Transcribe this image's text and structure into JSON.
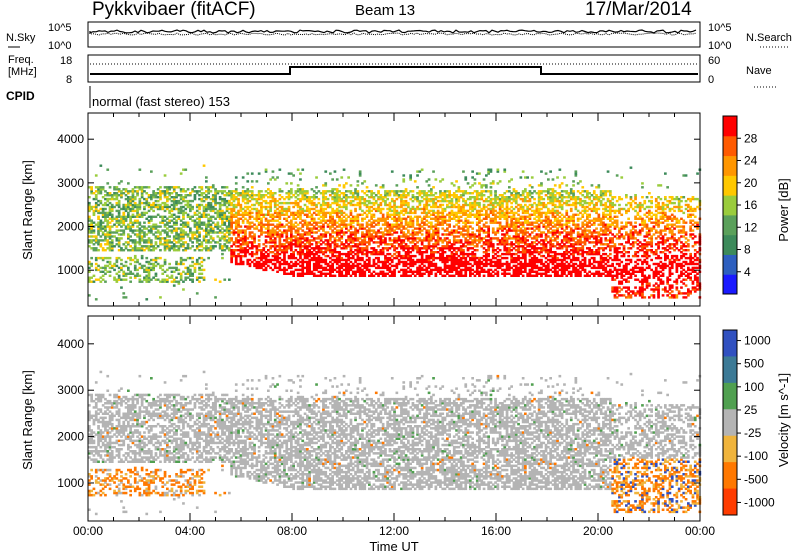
{
  "header": {
    "title": "Pykkvibaer (fitACF)",
    "beam": "Beam 13",
    "date": "17/Mar/2014"
  },
  "top_panel": {
    "left_label": "N.Sky",
    "right_label": "N.Search",
    "left_ticks": [
      "10^5",
      "10^0"
    ],
    "right_ticks": [
      "10^5",
      "10^0"
    ]
  },
  "freq_panel": {
    "left_label_1": "Freq.",
    "left_label_2": "[MHz]",
    "right_label": "Nave",
    "left_ticks": [
      "18",
      "8"
    ],
    "right_ticks": [
      "60",
      "0"
    ]
  },
  "cpid": {
    "label": "CPID",
    "value": "normal (fast stereo) 153"
  },
  "colors": {
    "power_scale": [
      "#1a1aff",
      "#2d5fbf",
      "#3c8a5a",
      "#5aa05a",
      "#9acc3c",
      "#ffc800",
      "#ff9600",
      "#ff5a00",
      "#ff0000"
    ],
    "velocity_scale": [
      "#3050c0",
      "#3c7a96",
      "#50a050",
      "#b4b4b4",
      "#f0b43c",
      "#ff7800",
      "#ff3c00"
    ],
    "ground_scatter": "#b4b4b4"
  },
  "chart_data": [
    {
      "type": "heatmap",
      "title": "",
      "xlabel": "Time UT",
      "ylabel": "Slant Range [km]",
      "colorbar_label": "Power [dB]",
      "x_ticks": [
        "00:00",
        "04:00",
        "08:00",
        "12:00",
        "16:00",
        "20:00",
        "00:00"
      ],
      "xlim": [
        0,
        24
      ],
      "y_ticks": [
        "1000",
        "2000",
        "3000",
        "4000"
      ],
      "ylim": [
        180,
        4600
      ],
      "colorbar_ticks": [
        "4",
        "8",
        "12",
        "16",
        "20",
        "24",
        "28"
      ],
      "colorbar_range": [
        0,
        32
      ],
      "description_bands": [
        {
          "t": [
            0,
            5.5
          ],
          "range_km": [
            1500,
            2800
          ],
          "power_db": [
            8,
            20
          ]
        },
        {
          "t": [
            5.5,
            20.5
          ],
          "range_km": [
            900,
            2600
          ],
          "power_db": [
            16,
            30
          ]
        },
        {
          "t": [
            20.5,
            24
          ],
          "range_km": [
            400,
            2600
          ],
          "power_db": [
            4,
            30
          ]
        }
      ]
    },
    {
      "type": "heatmap",
      "title": "",
      "xlabel": "Time UT",
      "ylabel": "Slant Range [km]",
      "colorbar_label": "Velocity [m s^-1]",
      "x_ticks": [
        "00:00",
        "04:00",
        "08:00",
        "12:00",
        "16:00",
        "20:00",
        "00:00"
      ],
      "xlim": [
        0,
        24
      ],
      "y_ticks": [
        "1000",
        "2000",
        "3000",
        "4000"
      ],
      "ylim": [
        180,
        4600
      ],
      "colorbar_ticks": [
        "1000",
        "500",
        "100",
        "25",
        "-25",
        "-100",
        "-500",
        "-1000"
      ]
    }
  ]
}
